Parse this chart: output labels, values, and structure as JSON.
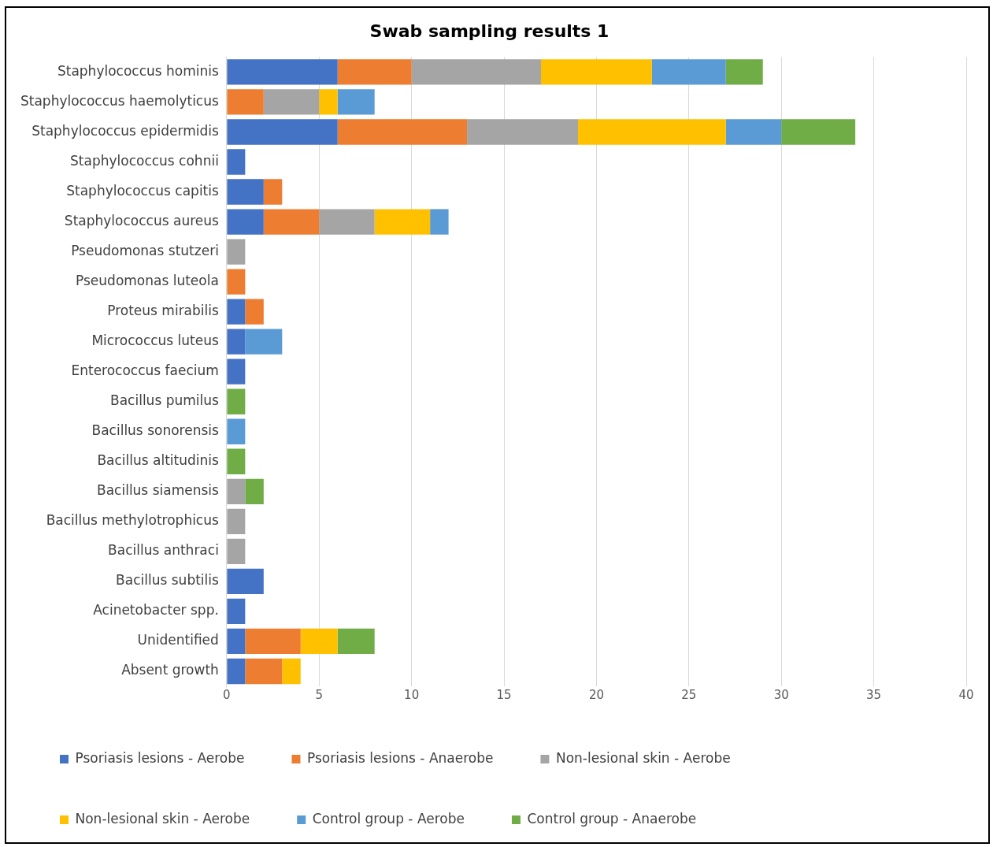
{
  "chart_data": {
    "type": "bar",
    "orientation": "horizontal",
    "stacked": true,
    "title": "Swab sampling results 1",
    "categories": [
      "Staphylococcus hominis",
      "Staphylococcus haemolyticus",
      "Staphylococcus epidermidis",
      "Staphylococcus cohnii",
      "Staphylococcus capitis",
      "Staphylococcus aureus",
      "Pseudomonas stutzeri",
      "Pseudomonas luteola",
      "Proteus mirabilis",
      "Micrococcus luteus",
      "Enterococcus faecium",
      "Bacillus pumilus",
      "Bacillus sonorensis",
      "Bacillus altitudinis",
      "Bacillus siamensis",
      "Bacillus methylotrophicus",
      "Bacillus anthraci",
      "Bacillus subtilis",
      "Acinetobacter spp.",
      "Unidentified",
      "Absent growth"
    ],
    "series": [
      {
        "name": "Psoriasis lesions - Aerobe",
        "color": "#4472c4",
        "values": [
          6,
          0,
          6,
          1,
          2,
          2,
          0,
          0,
          1,
          1,
          1,
          0,
          0,
          0,
          0,
          0,
          0,
          2,
          1,
          1,
          1
        ]
      },
      {
        "name": "Psoriasis lesions - Anaerobe",
        "color": "#ed7d31",
        "values": [
          4,
          2,
          7,
          0,
          1,
          3,
          0,
          1,
          1,
          0,
          0,
          0,
          0,
          0,
          0,
          0,
          0,
          0,
          0,
          3,
          2
        ]
      },
      {
        "name": "Non-lesional skin - Aerobe",
        "color": "#a5a5a5",
        "values": [
          7,
          3,
          6,
          0,
          0,
          3,
          1,
          0,
          0,
          0,
          0,
          0,
          0,
          0,
          1,
          1,
          1,
          0,
          0,
          0,
          0
        ]
      },
      {
        "name": "Non-lesional skin - Aerobe",
        "color": "#ffc000",
        "values": [
          6,
          1,
          8,
          0,
          0,
          3,
          0,
          0,
          0,
          0,
          0,
          0,
          0,
          0,
          0,
          0,
          0,
          0,
          0,
          2,
          1
        ]
      },
      {
        "name": "Control group - Aerobe",
        "color": "#5b9bd5",
        "values": [
          4,
          2,
          3,
          0,
          0,
          1,
          0,
          0,
          0,
          2,
          0,
          0,
          1,
          0,
          0,
          0,
          0,
          0,
          0,
          0,
          0
        ]
      },
      {
        "name": "Control group - Anaerobe",
        "color": "#70ad47",
        "values": [
          2,
          0,
          4,
          0,
          0,
          0,
          0,
          0,
          0,
          0,
          0,
          1,
          0,
          1,
          1,
          0,
          0,
          0,
          0,
          2,
          0
        ]
      }
    ],
    "xlim": [
      0,
      40
    ],
    "xticks": [
      0,
      5,
      10,
      15,
      20,
      25,
      30,
      35,
      40
    ],
    "grid": "x",
    "legend": "bottom"
  }
}
